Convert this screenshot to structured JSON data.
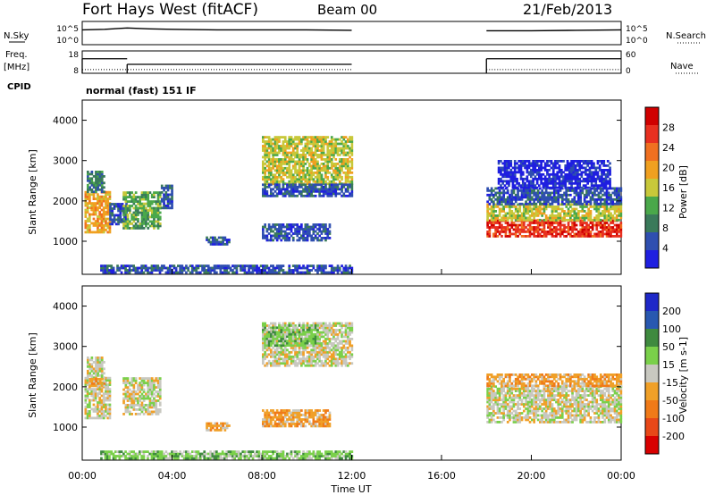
{
  "header": {
    "station": "Fort Hays West (fitACF)",
    "beam": "Beam 00",
    "date": "21/Feb/2013"
  },
  "left_labels": {
    "nsky": "N.Sky",
    "freq_top": "Freq.",
    "freq_unit": "[MHz]",
    "cpid": "CPID"
  },
  "right_labels": {
    "nsearch": "N.Search",
    "nave": "Nave"
  },
  "cpid_text": "normal (fast) 151 IF",
  "colors": {
    "data_line": "#000000",
    "power_scale": [
      "#1f1fe0",
      "#2f4fb0",
      "#3a7a5a",
      "#4aa84a",
      "#c8c83a",
      "#f0a020",
      "#f07020",
      "#e83020",
      "#d00000"
    ],
    "velocity_scale": [
      "#1e28c8",
      "#2858b0",
      "#3f8a3f",
      "#7ad04a",
      "#c8c8c0",
      "#f0a028",
      "#f07a18",
      "#e84818",
      "#d80000"
    ]
  },
  "chart_data": [
    {
      "type": "line",
      "name_panel": "nsky_nsearch",
      "left_ticks": [
        "10^5",
        "10^0"
      ],
      "right_ticks": [
        "10^5",
        "10^0"
      ],
      "x": [
        "00:00",
        "01:00",
        "02:00",
        "03:00",
        "04:00",
        "06:00",
        "08:00",
        "10:00",
        "12:00",
        "18:00",
        "20:00",
        "22:00",
        "24:00"
      ],
      "values_log10": [
        3.2,
        3.3,
        3.6,
        3.4,
        3.3,
        3.2,
        3.2,
        3.2,
        3.1,
        3.0,
        3.0,
        3.1,
        3.2
      ],
      "gaps": [
        [
          12,
          18
        ]
      ]
    },
    {
      "type": "line",
      "name_panel": "freq_nave",
      "left_ticks": [
        "18",
        "8"
      ],
      "right_ticks": [
        "60",
        "0"
      ],
      "freq_mhz": [
        {
          "t_start": 0.0,
          "t_end": 2.0,
          "value": 14.5
        },
        {
          "t_start": 2.0,
          "t_end": 12.0,
          "value": 12.0
        },
        {
          "t_start": 18.0,
          "t_end": 24.0,
          "value": 14.5
        }
      ],
      "nave_level": 10
    },
    {
      "type": "heatmap",
      "name_panel": "power",
      "ylabel": "Slant Range [km]",
      "y_ticks": [
        1000,
        2000,
        3000,
        4000
      ],
      "ylim": [
        180,
        4500
      ],
      "xlim": [
        0,
        24
      ],
      "colorbar_label": "Power [dB]",
      "colorbar_ticks": [
        "4",
        "8",
        "12",
        "16",
        "20",
        "24",
        "28"
      ],
      "regions": [
        {
          "t0": 0.1,
          "t1": 1.2,
          "r0": 1200,
          "r1": 2200,
          "level": 5
        },
        {
          "t0": 0.2,
          "t1": 1.0,
          "r0": 2200,
          "r1": 2700,
          "level": 2
        },
        {
          "t0": 1.2,
          "t1": 2.0,
          "r0": 1400,
          "r1": 1900,
          "level": 1
        },
        {
          "t0": 1.8,
          "t1": 3.5,
          "r0": 1300,
          "r1": 2200,
          "level": 3
        },
        {
          "t0": 3.5,
          "t1": 4.0,
          "r0": 1800,
          "r1": 2400,
          "level": 1
        },
        {
          "t0": 8.0,
          "t1": 12.0,
          "r0": 2400,
          "r1": 3600,
          "level": 4
        },
        {
          "t0": 8.0,
          "t1": 12.0,
          "r0": 2100,
          "r1": 2400,
          "level": 1
        },
        {
          "t0": 8.0,
          "t1": 11.0,
          "r0": 1000,
          "r1": 1400,
          "level": 1
        },
        {
          "t0": 5.5,
          "t1": 6.5,
          "r0": 900,
          "r1": 1100,
          "level": 1
        },
        {
          "t0": 0.8,
          "t1": 12.0,
          "r0": 200,
          "r1": 400,
          "level": 1
        },
        {
          "t0": 18.0,
          "t1": 24.0,
          "r0": 1100,
          "r1": 1500,
          "level": 7
        },
        {
          "t0": 18.0,
          "t1": 24.0,
          "r0": 1500,
          "r1": 1900,
          "level": 4
        },
        {
          "t0": 18.0,
          "t1": 24.0,
          "r0": 1900,
          "r1": 2300,
          "level": 1
        },
        {
          "t0": 18.5,
          "t1": 23.5,
          "r0": 2300,
          "r1": 3000,
          "level": 0
        }
      ]
    },
    {
      "type": "heatmap",
      "name_panel": "velocity",
      "ylabel": "Slant Range [km]",
      "y_ticks": [
        1000,
        2000,
        3000,
        4000
      ],
      "ylim": [
        180,
        4500
      ],
      "xlim": [
        0,
        24
      ],
      "xlabel": "Time UT",
      "x_ticks": [
        "00:00",
        "04:00",
        "08:00",
        "12:00",
        "16:00",
        "20:00",
        "00:00"
      ],
      "colorbar_label": "Velocity [m s-1]",
      "colorbar_ticks": [
        "200",
        "100",
        "50",
        "15",
        "-15",
        "-50",
        "-100",
        "-200"
      ],
      "regions": [
        {
          "t0": 0.1,
          "t1": 1.2,
          "r0": 1200,
          "r1": 2200,
          "level": 4
        },
        {
          "t0": 0.2,
          "t1": 1.0,
          "r0": 2200,
          "r1": 2700,
          "level": 4
        },
        {
          "t0": 0.3,
          "t1": 1.0,
          "r0": 2000,
          "r1": 2200,
          "level": 5
        },
        {
          "t0": 1.8,
          "t1": 3.5,
          "r0": 1300,
          "r1": 2200,
          "level": 4
        },
        {
          "t0": 8.0,
          "t1": 12.0,
          "r0": 2500,
          "r1": 3600,
          "level": 4
        },
        {
          "t0": 8.0,
          "t1": 10.5,
          "r0": 3000,
          "r1": 3500,
          "level": 3
        },
        {
          "t0": 8.0,
          "t1": 11.0,
          "r0": 1000,
          "r1": 1400,
          "level": 5
        },
        {
          "t0": 5.5,
          "t1": 6.5,
          "r0": 900,
          "r1": 1100,
          "level": 5
        },
        {
          "t0": 0.8,
          "t1": 12.0,
          "r0": 200,
          "r1": 400,
          "level": 3
        },
        {
          "t0": 18.0,
          "t1": 24.0,
          "r0": 1100,
          "r1": 2000,
          "level": 4
        },
        {
          "t0": 18.0,
          "t1": 24.0,
          "r0": 2000,
          "r1": 2300,
          "level": 5
        }
      ]
    }
  ]
}
